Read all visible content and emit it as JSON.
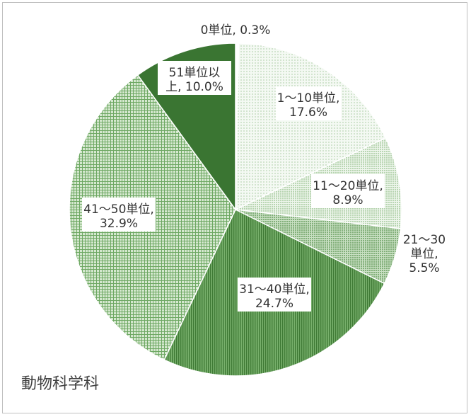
{
  "chart_data": {
    "type": "pie",
    "title": "動物科学科",
    "start_angle_deg": 0,
    "direction": "clockwise",
    "slices": [
      {
        "label_lines": [
          "0単位, 0.3%"
        ],
        "category": "0単位",
        "value": 0.3,
        "fill": "#ffffff",
        "pattern": "none"
      },
      {
        "label_lines": [
          "1～10単位,",
          "17.6%"
        ],
        "category": "1～10単位",
        "value": 17.6,
        "fill": "#eef5ec",
        "pattern": "fine-dots"
      },
      {
        "label_lines": [
          "11～20単位,",
          "8.9%"
        ],
        "category": "11～20単位",
        "value": 8.9,
        "fill": "#e5f0e2",
        "pattern": "dots"
      },
      {
        "label_lines": [
          "21～30",
          "単位,",
          "5.5%"
        ],
        "category": "21～30単位",
        "value": 5.5,
        "fill": "#a9cda1",
        "pattern": "dense-dots"
      },
      {
        "label_lines": [
          "31～40単位,",
          "24.7%"
        ],
        "category": "31～40単位",
        "value": 24.7,
        "fill": "#5d9a52",
        "pattern": "vertical-lines"
      },
      {
        "label_lines": [
          "41～50単位,",
          "32.9%"
        ],
        "category": "41～50単位",
        "value": 32.9,
        "fill": "#b6d4ae",
        "pattern": "grid"
      },
      {
        "label_lines": [
          "51単位以",
          "上, 10.0%"
        ],
        "category": "51単位以上",
        "value": 10.0,
        "fill": "#3a7532",
        "pattern": "none"
      }
    ]
  },
  "colors": {
    "outline": "#ffffff",
    "label_box": "#ffffff",
    "text": "#333333"
  }
}
